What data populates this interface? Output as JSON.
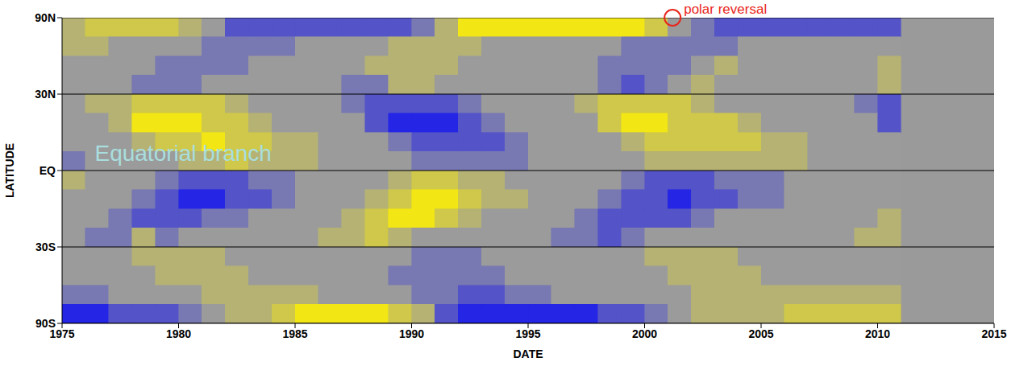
{
  "chart_data": {
    "type": "heatmap",
    "x_label": "DATE",
    "y_label": "LATITUDE",
    "xlim": [
      1975,
      2015
    ],
    "xticks": [
      1975,
      1980,
      1985,
      1990,
      1995,
      2000,
      2005,
      2010,
      2015
    ],
    "ylim": [
      -1,
      1
    ],
    "yticks": [
      {
        "value": 1,
        "label": "90N"
      },
      {
        "value": 0.5,
        "label": "30N"
      },
      {
        "value": 0,
        "label": "EQ"
      },
      {
        "value": -0.5,
        "label": "30S"
      },
      {
        "value": -1,
        "label": "90S"
      }
    ],
    "grid": true,
    "zlim": [
      -1,
      1
    ],
    "x_edges": [
      1975,
      1976,
      1977,
      1978,
      1979,
      1980,
      1981,
      1982,
      1983,
      1984,
      1985,
      1986,
      1987,
      1988,
      1989,
      1990,
      1991,
      1992,
      1993,
      1994,
      1995,
      1996,
      1997,
      1998,
      1999,
      2000,
      2001,
      2002,
      2003,
      2004,
      2005,
      2006,
      2007,
      2008,
      2009,
      2010,
      2011
    ],
    "y_edges": [
      1,
      0.875,
      0.75,
      0.625,
      0.5,
      0.375,
      0.25,
      0.125,
      0,
      -0.125,
      -0.25,
      -0.375,
      -0.5,
      -0.625,
      -0.75,
      -0.875,
      -1
    ],
    "values": [
      [
        0.3,
        0.6,
        0.6,
        0.6,
        0.6,
        0.3,
        0,
        -0.6,
        -0.6,
        -0.6,
        -0.6,
        -0.6,
        -0.6,
        -0.6,
        -0.6,
        -0.3,
        0.3,
        1,
        1,
        1,
        1,
        1,
        1,
        1,
        1,
        0.6,
        0,
        -0.3,
        -0.6,
        -0.6,
        -0.6,
        -0.6,
        -0.6,
        -0.6,
        -0.6,
        -0.6
      ],
      [
        0.3,
        0.3,
        0,
        0,
        0,
        0,
        -0.3,
        -0.3,
        -0.3,
        -0.3,
        0,
        0,
        0,
        0,
        0.3,
        0.3,
        0.3,
        0.3,
        0,
        0,
        0,
        0,
        0,
        0,
        -0.3,
        -0.3,
        -0.3,
        -0.3,
        -0.3,
        0,
        0,
        0,
        0,
        0,
        0,
        0
      ],
      [
        0,
        0,
        0,
        0,
        -0.3,
        -0.3,
        -0.3,
        -0.3,
        0,
        0,
        0,
        0,
        0,
        0.3,
        0.3,
        0.3,
        0.3,
        0,
        0,
        0,
        0,
        0,
        0,
        -0.3,
        -0.3,
        -0.3,
        -0.3,
        0,
        0.3,
        0,
        0,
        0,
        0,
        0,
        0,
        0.3
      ],
      [
        0,
        0,
        0,
        -0.3,
        -0.3,
        -0.3,
        0,
        0,
        0,
        0,
        0,
        0,
        -0.3,
        -0.3,
        0.3,
        0.3,
        0,
        0,
        0,
        0,
        0,
        0,
        0,
        -0.3,
        -0.6,
        -0.3,
        0,
        0.3,
        0,
        0,
        0,
        0,
        0,
        0,
        0,
        0.3
      ],
      [
        0,
        0.3,
        0.3,
        0.6,
        0.6,
        0.6,
        0.6,
        0.3,
        0,
        0,
        0,
        0,
        -0.3,
        -0.6,
        -0.6,
        -0.6,
        -0.6,
        -0.3,
        0,
        0,
        0,
        0,
        0.3,
        0.6,
        0.6,
        0.6,
        0.6,
        0.3,
        0,
        0,
        0,
        0,
        0,
        0,
        -0.3,
        -0.6
      ],
      [
        0,
        0,
        0.3,
        1,
        1,
        1,
        0.6,
        0.6,
        0.3,
        0,
        0,
        0,
        0,
        -0.6,
        -1,
        -1,
        -1,
        -0.6,
        -0.3,
        0,
        0,
        0,
        0,
        0.6,
        1,
        1,
        0.6,
        0.6,
        0.6,
        0.3,
        0,
        0,
        0,
        0,
        0,
        -0.6
      ],
      [
        0,
        0,
        0,
        0.3,
        0.6,
        0.6,
        1,
        0.6,
        0.6,
        0.3,
        0.3,
        0,
        0,
        0,
        -0.3,
        -0.6,
        -0.6,
        -0.6,
        -0.6,
        -0.3,
        0,
        0,
        0,
        0,
        0.3,
        0.6,
        0.6,
        0.6,
        0.6,
        0.6,
        0.3,
        0.3,
        0,
        0,
        0,
        0
      ],
      [
        -0.3,
        0,
        0,
        0,
        0,
        0.3,
        0.3,
        0.6,
        0.3,
        0.3,
        0.3,
        0,
        0,
        0,
        0,
        -0.3,
        -0.3,
        -0.3,
        -0.3,
        -0.3,
        0,
        0,
        0,
        0,
        0,
        0.3,
        0.3,
        0.3,
        0.3,
        0.3,
        0.3,
        0.3,
        0,
        0,
        0,
        0
      ],
      [
        0.3,
        0,
        0,
        0,
        -0.3,
        -0.6,
        -0.6,
        -0.6,
        -0.3,
        -0.3,
        0,
        0,
        0,
        0,
        0.3,
        0.6,
        0.6,
        0.3,
        0.3,
        0,
        0,
        0,
        0,
        0,
        -0.3,
        -0.6,
        -0.6,
        -0.6,
        -0.3,
        -0.3,
        -0.3,
        0,
        0,
        0,
        0,
        0
      ],
      [
        0,
        0,
        0,
        -0.3,
        -0.6,
        -1,
        -1,
        -0.6,
        -0.6,
        -0.3,
        0,
        0,
        0,
        0.3,
        0.6,
        1,
        1,
        0.6,
        0.3,
        0.3,
        0,
        0,
        0,
        -0.3,
        -0.6,
        -0.6,
        -1,
        -0.6,
        -0.6,
        -0.3,
        -0.3,
        0,
        0,
        0,
        0,
        0
      ],
      [
        0,
        0,
        -0.3,
        -0.6,
        -0.6,
        -0.6,
        -0.3,
        -0.3,
        0,
        0,
        0,
        0,
        0.3,
        0.6,
        1,
        1,
        0.6,
        0.3,
        0,
        0,
        0,
        0,
        -0.3,
        -0.6,
        -0.6,
        -0.6,
        -0.6,
        -0.3,
        0,
        0,
        0,
        0,
        0,
        0,
        0,
        0.3
      ],
      [
        0,
        -0.3,
        -0.3,
        0.3,
        -0.3,
        0,
        0,
        0,
        0,
        0,
        0,
        0.3,
        0.3,
        0.6,
        0.3,
        0,
        0,
        0,
        0,
        0,
        0,
        -0.3,
        -0.3,
        -0.6,
        -0.3,
        0,
        0,
        0,
        0,
        0,
        0,
        0,
        0,
        0,
        0.3,
        0.3
      ],
      [
        0,
        0,
        0,
        0.3,
        0.3,
        0.3,
        0.3,
        0,
        0,
        0,
        0,
        0,
        0,
        0,
        0,
        -0.3,
        -0.3,
        -0.3,
        0,
        0,
        0,
        0,
        0,
        0,
        0,
        0.3,
        0.3,
        0.3,
        0.3,
        0,
        0,
        0,
        0,
        0,
        0,
        0
      ],
      [
        0,
        0,
        0,
        0,
        0.3,
        0.3,
        0.3,
        0.3,
        0,
        0,
        0,
        0,
        0,
        0,
        -0.3,
        -0.3,
        -0.3,
        -0.3,
        -0.3,
        0,
        0,
        0,
        0,
        0,
        0,
        0,
        0.3,
        0.3,
        0.3,
        0.3,
        0,
        0,
        0,
        0,
        0,
        0
      ],
      [
        -0.3,
        -0.3,
        0,
        0,
        0,
        0,
        0.3,
        0.3,
        0.3,
        0.3,
        0.3,
        0,
        0,
        0,
        0,
        -0.3,
        -0.3,
        -0.6,
        -0.6,
        -0.3,
        -0.3,
        0,
        0,
        0,
        0,
        0,
        0,
        0.3,
        0.3,
        0.3,
        0.3,
        0.3,
        0.3,
        0.3,
        0.3,
        0.3
      ],
      [
        -1,
        -1,
        -0.6,
        -0.6,
        -0.6,
        -0.3,
        0,
        0.3,
        0.3,
        0.6,
        1,
        1,
        1,
        1,
        0.6,
        0.3,
        -0.6,
        -1,
        -1,
        -1,
        -1,
        -1,
        -1,
        -0.6,
        -0.6,
        -0.3,
        0,
        0.3,
        0.3,
        0.3,
        0.3,
        0.6,
        0.6,
        0.6,
        0.6,
        0.6
      ]
    ],
    "annotations": [
      {
        "text": "Equatorial branch",
        "x": 1976.4,
        "y": 0.1,
        "color": "#a9dede"
      },
      {
        "text": "polar reversal",
        "x": 2001.2,
        "y": 1,
        "color": "#e8261c",
        "marker": "circle"
      }
    ]
  }
}
